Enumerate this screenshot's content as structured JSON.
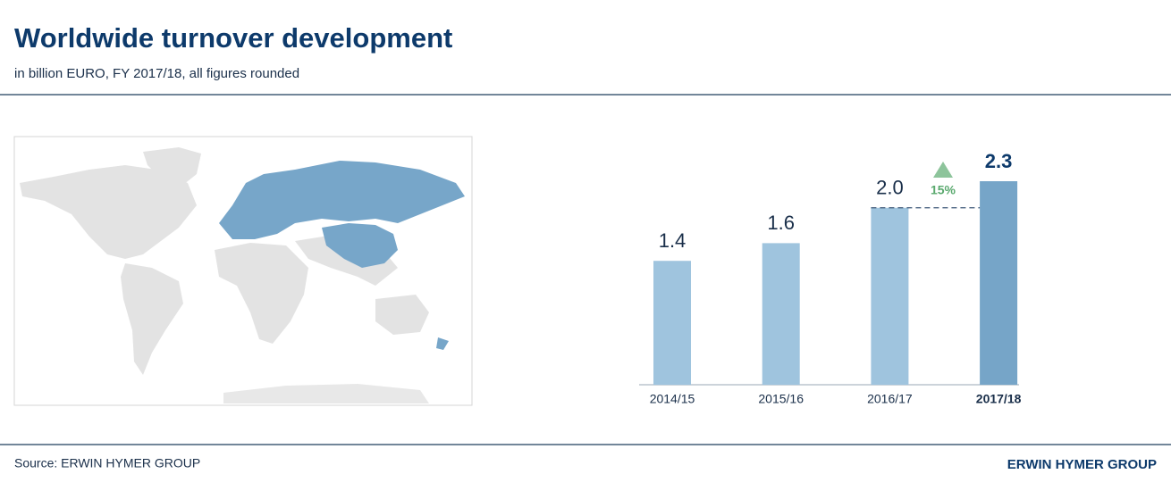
{
  "chart_data": {
    "type": "bar",
    "title": "Worldwide turnover development",
    "subtitle": "in billion EURO, FY 2017/18, all figures rounded",
    "categories": [
      "2014/15",
      "2015/16",
      "2016/17",
      "2017/18"
    ],
    "values": [
      1.4,
      1.6,
      2.0,
      2.3
    ],
    "value_labels": [
      "1.4",
      "1.6",
      "2.0",
      "2.3"
    ],
    "colors": [
      "#9fc4de",
      "#9fc4de",
      "#9fc4de",
      "#76a5c8"
    ],
    "annotation": "15%",
    "source": "Source: ERWIN HYMER GROUP",
    "brand": "ERWIN HYMER GROUP"
  }
}
